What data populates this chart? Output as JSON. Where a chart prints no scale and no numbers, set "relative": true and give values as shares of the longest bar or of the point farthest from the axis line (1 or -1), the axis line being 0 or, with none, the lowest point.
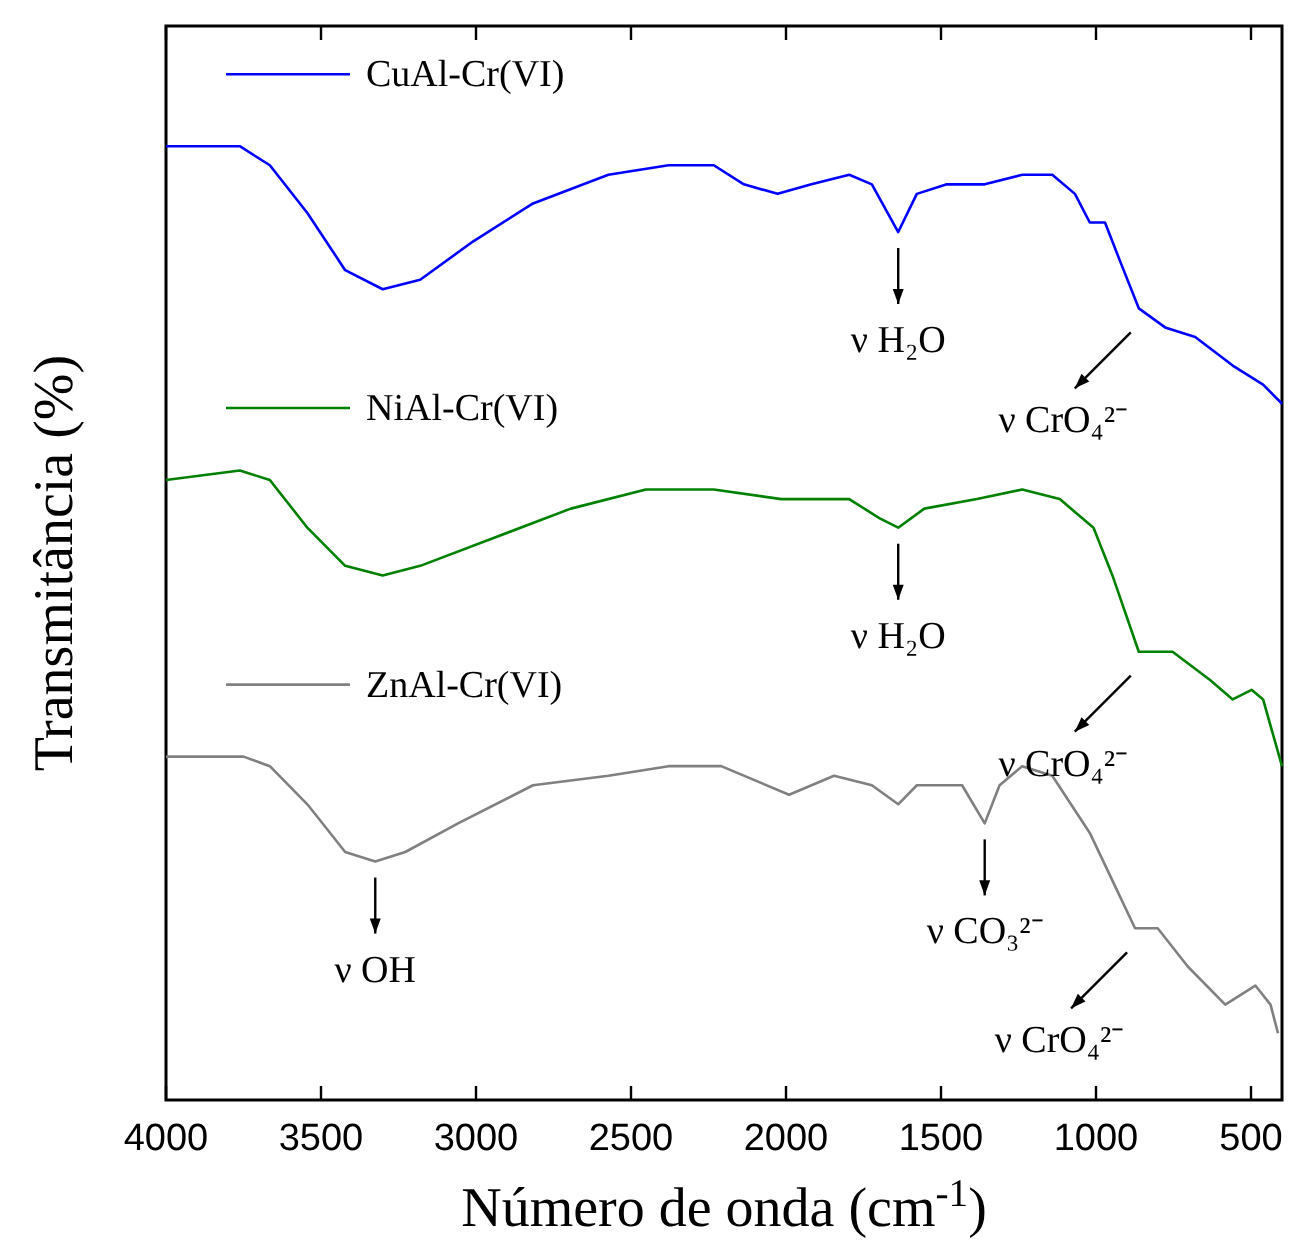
{
  "chart_data": {
    "type": "line",
    "xlabel": "Número de onda (cm$^{-1}$)",
    "ylabel": "Transmitância (%)",
    "relative": true,
    "xlim": [
      4000,
      400
    ],
    "xticks": [
      4000,
      3500,
      3000,
      2500,
      2000,
      1500,
      1000,
      500
    ],
    "tick_labels": "x",
    "grid": false,
    "legend": "top left",
    "marker": "none",
    "line_style": "solid",
    "series": [
      {
        "name": "CuAl-Cr(VI)",
        "color": "#0000ff",
        "x": [
          4000,
          3762,
          3665,
          3544,
          3422,
          3301,
          3180,
          3010,
          2816,
          2573,
          2379,
          2233,
          2136,
          2027,
          1918,
          1796,
          1723,
          1638,
          1578,
          1481,
          1359,
          1238,
          1141,
          1068,
          1020,
          971,
          923,
          862,
          777,
          680,
          559,
          461,
          400
        ],
        "values": [
          1.0,
          1.0,
          0.98,
          0.93,
          0.87,
          0.85,
          0.86,
          0.9,
          0.94,
          0.97,
          0.98,
          0.98,
          0.96,
          0.95,
          0.96,
          0.97,
          0.96,
          0.91,
          0.95,
          0.96,
          0.96,
          0.97,
          0.97,
          0.95,
          0.92,
          0.92,
          0.88,
          0.83,
          0.81,
          0.8,
          0.77,
          0.75,
          0.73
        ]
      },
      {
        "name": "NiAl-Cr(VI)",
        "color": "#008000",
        "x": [
          4000,
          3762,
          3665,
          3544,
          3422,
          3301,
          3180,
          2937,
          2694,
          2452,
          2233,
          2015,
          1796,
          1699,
          1638,
          1554,
          1384,
          1238,
          1117,
          1008,
          947,
          862,
          753,
          631,
          559,
          498,
          461,
          400
        ],
        "values": [
          0.65,
          0.66,
          0.65,
          0.6,
          0.56,
          0.55,
          0.56,
          0.59,
          0.62,
          0.64,
          0.64,
          0.63,
          0.63,
          0.61,
          0.6,
          0.62,
          0.63,
          0.64,
          0.63,
          0.6,
          0.55,
          0.47,
          0.47,
          0.44,
          0.42,
          0.43,
          0.42,
          0.35
        ]
      },
      {
        "name": "ZnAl-Cr(VI)",
        "color": "#808080",
        "x": [
          4000,
          3750,
          3665,
          3544,
          3422,
          3325,
          3228,
          3058,
          2816,
          2573,
          2379,
          2209,
          1990,
          1845,
          1723,
          1638,
          1578,
          1432,
          1359,
          1311,
          1238,
          1141,
          1020,
          947,
          874,
          801,
          704,
          583,
          486,
          437,
          413
        ],
        "values": [
          0.36,
          0.36,
          0.35,
          0.31,
          0.26,
          0.25,
          0.26,
          0.29,
          0.33,
          0.34,
          0.35,
          0.35,
          0.32,
          0.34,
          0.33,
          0.31,
          0.33,
          0.33,
          0.29,
          0.33,
          0.35,
          0.34,
          0.28,
          0.23,
          0.18,
          0.18,
          0.14,
          0.1,
          0.12,
          0.1,
          0.07
        ]
      }
    ],
    "annotations": [
      {
        "text": "ν H₂O",
        "x": 1638,
        "y": 0.91
      },
      {
        "text": "ν CrO₄²⁻",
        "x": 862,
        "y": 0.83
      },
      {
        "text": "ν H₂O",
        "x": 1638,
        "y": 0.6
      },
      {
        "text": "ν CrO₄²⁻",
        "x": 862,
        "y": 0.47
      },
      {
        "text": "ν OH",
        "x": 3325,
        "y": 0.25
      },
      {
        "text": "ν CO₃²⁻",
        "x": 1359,
        "y": 0.29
      },
      {
        "text": "ν CrO₄²⁻",
        "x": 874,
        "y": 0.18
      }
    ]
  }
}
